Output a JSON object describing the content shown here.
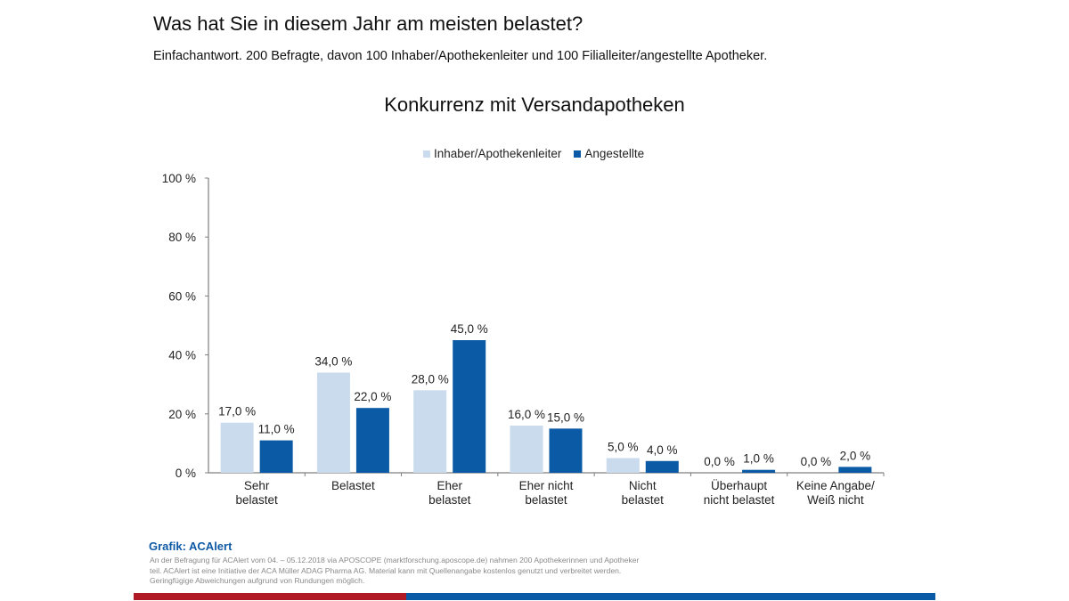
{
  "header": {
    "title": "Was hat Sie in diesem Jahr am meisten belastet?",
    "subtitle": "Einfachantwort. 200 Befragte, davon 100 Inhaber/Apothekenleiter und 100 Filialleiter/angestellte Apotheker."
  },
  "footer": {
    "source_title": "Grafik: ACAlert",
    "source_text": "An der Befragung für ACAlert vom 04. – 05.12.2018 via APOSCOPE (marktforschung.aposcope.de) nahmen 200 Apothekerinnen und Apotheker teil. ACAlert ist eine Initiative der ACA Müller ADAG Pharma AG. Material kann mit Quellenangabe kostenlos genutzt und verbreitet werden. Geringfügige Abweichungen aufgrund von Rundungen möglich.",
    "colors": {
      "red": "#b01a24",
      "blue": "#0b5aa6"
    }
  },
  "chart_data": {
    "type": "bar",
    "title": "Konkurrenz mit Versandapotheken",
    "xlabel": "",
    "ylabel": "",
    "ylim": [
      0,
      100
    ],
    "yticks": [
      0,
      20,
      40,
      60,
      80,
      100
    ],
    "ytick_labels": [
      "0 %",
      "20 %",
      "40 %",
      "60 %",
      "80 %",
      "100 %"
    ],
    "grid": false,
    "legend_position": "top-center",
    "categories": [
      [
        "Sehr",
        "belastet"
      ],
      [
        "Belastet"
      ],
      [
        "Eher",
        "belastet"
      ],
      [
        "Eher nicht",
        "belastet"
      ],
      [
        "Nicht",
        "belastet"
      ],
      [
        "Überhaupt",
        "nicht belastet"
      ],
      [
        "Keine Angabe/",
        "Weiß nicht"
      ]
    ],
    "series": [
      {
        "name": "Inhaber/Apothekenleiter",
        "color": "#c9dbec",
        "values": [
          17.0,
          34.0,
          28.0,
          16.0,
          5.0,
          0.0,
          0.0
        ],
        "labels": [
          "17,0 %",
          "34,0 %",
          "28,0 %",
          "16,0 %",
          "5,0 %",
          "0,0 %",
          "0,0 %"
        ]
      },
      {
        "name": "Angestellte",
        "color": "#0b5aa6",
        "values": [
          11.0,
          22.0,
          45.0,
          15.0,
          4.0,
          1.0,
          2.0
        ],
        "labels": [
          "11,0 %",
          "22,0 %",
          "45,0 %",
          "15,0 %",
          "4,0 %",
          "1,0 %",
          "2,0 %"
        ]
      }
    ]
  }
}
